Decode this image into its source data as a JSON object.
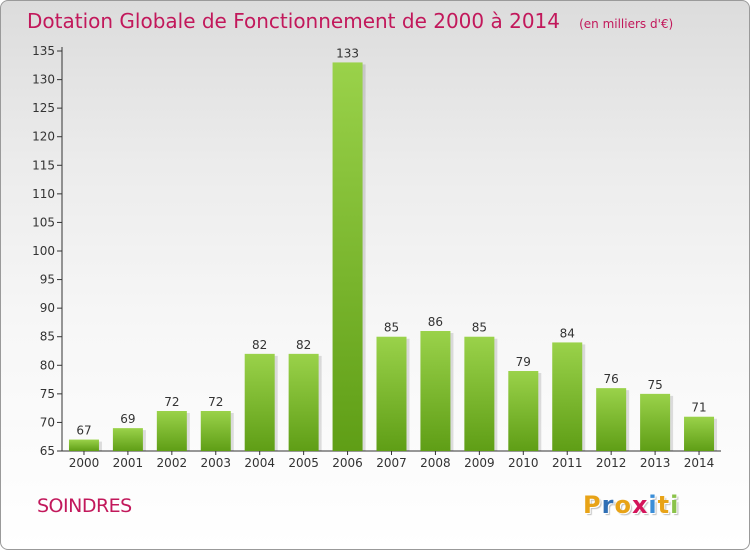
{
  "header": {
    "title": "Dotation Globale de Fonctionnement de 2000 à 2014",
    "subtitle": "(en milliers d'€)"
  },
  "footer": {
    "place": "SOINDRES",
    "logo_text": "Proxiti",
    "logo_letters": [
      {
        "ch": "P",
        "color": "#e8a317"
      },
      {
        "ch": "r",
        "color": "#2f6fb5"
      },
      {
        "ch": "o",
        "color": "#e8a317"
      },
      {
        "ch": "x",
        "color": "#d4145a"
      },
      {
        "ch": "i",
        "color": "#3b8ed8"
      },
      {
        "ch": "t",
        "color": "#e8a317"
      },
      {
        "ch": "i",
        "color": "#8bc34a"
      }
    ]
  },
  "colors": {
    "title": "#c2185b",
    "bar_light": "#9ad24a",
    "bar_dark": "#5f9e16",
    "axis": "#333333",
    "grid": "#c8c8c8"
  },
  "chart_data": {
    "type": "bar",
    "title": "Dotation Globale de Fonctionnement de 2000 à 2014",
    "subtitle": "(en milliers d'€)",
    "xlabel": "",
    "ylabel": "",
    "categories": [
      "2000",
      "2001",
      "2002",
      "2003",
      "2004",
      "2005",
      "2006",
      "2007",
      "2008",
      "2009",
      "2010",
      "2011",
      "2012",
      "2013",
      "2014"
    ],
    "values": [
      67,
      69,
      72,
      72,
      82,
      82,
      133,
      85,
      86,
      85,
      79,
      84,
      76,
      75,
      71
    ],
    "ylim": [
      65,
      135
    ],
    "yticks": [
      65,
      70,
      75,
      80,
      85,
      90,
      95,
      100,
      105,
      110,
      115,
      120,
      125,
      130,
      135
    ],
    "grid": false,
    "data_labels": true
  }
}
